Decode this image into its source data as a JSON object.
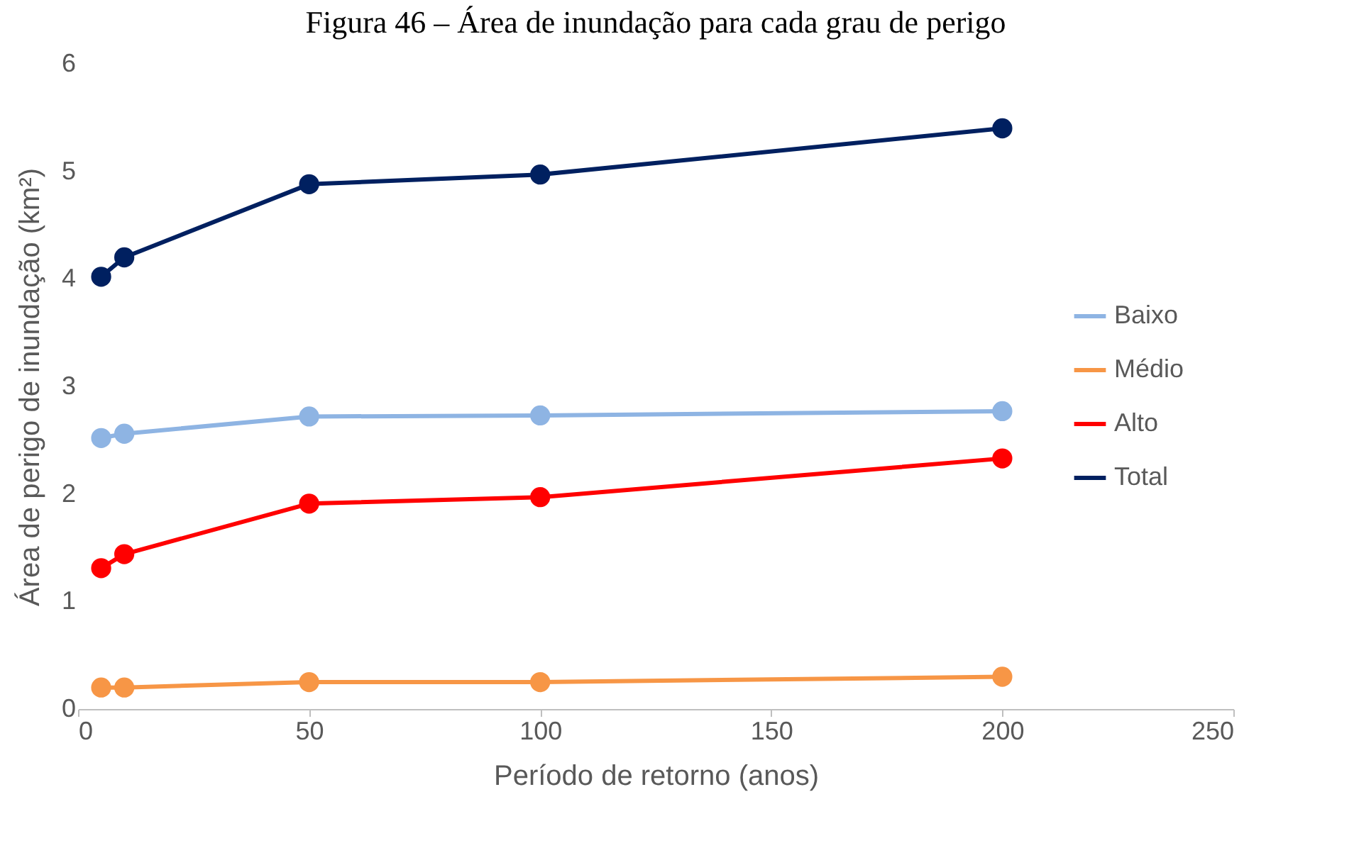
{
  "chart_data": {
    "type": "line",
    "title": "Figura 46 – Área de inundação para cada grau de perigo",
    "xlabel": "Período de retorno (anos)",
    "ylabel": "Área de perigo de inundação (km²)",
    "x": [
      5,
      10,
      50,
      100,
      200
    ],
    "series": [
      {
        "name": "Baixo",
        "color": "#8eb4e3",
        "values": [
          2.52,
          2.56,
          2.72,
          2.73,
          2.77
        ]
      },
      {
        "name": "Médio",
        "color": "#f79646",
        "values": [
          0.2,
          0.2,
          0.25,
          0.25,
          0.3
        ]
      },
      {
        "name": "Alto",
        "color": "#ff0000",
        "values": [
          1.31,
          1.44,
          1.91,
          1.97,
          2.33
        ]
      },
      {
        "name": "Total",
        "color": "#002060",
        "values": [
          4.02,
          4.2,
          4.88,
          4.97,
          5.4
        ]
      }
    ],
    "xlim": [
      0,
      250
    ],
    "xticks": [
      0,
      50,
      100,
      150,
      200,
      250
    ],
    "ylim": [
      0,
      6
    ],
    "yticks": [
      0,
      1,
      2,
      3,
      4,
      5,
      6
    ],
    "grid": false,
    "legend": "right",
    "marker": "circle",
    "line_style": "solid"
  }
}
